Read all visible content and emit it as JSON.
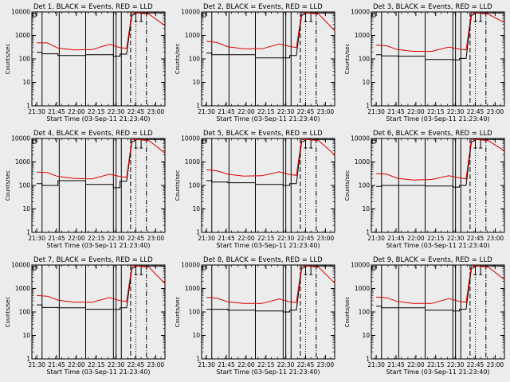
{
  "chart_data": {
    "type": "line",
    "layout": "3x3 grid",
    "xlabel": "Start Time (03-Sep-11 21:23:40)",
    "ylabel": "Counts/sec",
    "x_ticks": [
      "21:30",
      "21:45",
      "22:00",
      "22:15",
      "22:30",
      "22:45",
      "23:00"
    ],
    "y_ticks": [
      "1",
      "10",
      "100",
      "1000",
      "10000"
    ],
    "y_scale": "log",
    "ylim": [
      1,
      10000
    ],
    "x_unit": "minutes after 21:30",
    "xlim": [
      -3.7,
      97
    ],
    "series_legend": [
      {
        "name": "Events",
        "color": "#000000"
      },
      {
        "name": "LLD",
        "color": "#dd0000"
      }
    ],
    "markers": {
      "solid_lines": [
        4,
        17,
        37,
        58,
        60,
        64
      ],
      "dashed_line": 71,
      "dotted_line": 75,
      "dash_dot_line": 83
    },
    "panels": [
      {
        "title": "Det 1, BLACK = Events, RED = LLD",
        "events": {
          "x": [
            0,
            4,
            4.01,
            16,
            16.01,
            37,
            37.01,
            58,
            58.01,
            63,
            63.01,
            68,
            72,
            76,
            97
          ],
          "y": [
            190,
            190,
            165,
            165,
            140,
            140,
            150,
            150,
            130,
            130,
            160,
            160,
            7000,
            9000,
            9000
          ]
        },
        "lld": {
          "x": [
            0,
            8,
            16,
            28,
            42,
            55,
            63,
            68,
            72,
            76,
            85,
            97
          ],
          "y": [
            480,
            480,
            290,
            240,
            250,
            420,
            300,
            280,
            9000,
            9000,
            8000,
            2600
          ]
        }
      },
      {
        "title": "Det 2, BLACK = Events, RED = LLD",
        "events": {
          "x": [
            0,
            4,
            4.01,
            16,
            16.01,
            37,
            37.01,
            58,
            58.01,
            63,
            63.01,
            68,
            72,
            76,
            97
          ],
          "y": [
            175,
            175,
            150,
            150,
            150,
            150,
            110,
            110,
            110,
            110,
            140,
            140,
            7000,
            9000,
            9000
          ]
        },
        "lld": {
          "x": [
            0,
            8,
            16,
            28,
            42,
            55,
            63,
            68,
            72,
            76,
            85,
            97
          ],
          "y": [
            560,
            500,
            330,
            270,
            270,
            430,
            340,
            300,
            9000,
            9000,
            8000,
            1600
          ]
        }
      },
      {
        "title": "Det 3, BLACK = Events, RED = LLD",
        "events": {
          "x": [
            0,
            4,
            4.01,
            16,
            16.01,
            37,
            37.01,
            58,
            58.01,
            63,
            63.01,
            68,
            72,
            76,
            97
          ],
          "y": [
            150,
            150,
            135,
            135,
            130,
            130,
            95,
            95,
            90,
            90,
            105,
            105,
            7000,
            9000,
            9000
          ]
        },
        "lld": {
          "x": [
            0,
            8,
            16,
            28,
            42,
            55,
            63,
            68,
            72,
            76,
            85,
            97
          ],
          "y": [
            390,
            360,
            250,
            210,
            210,
            320,
            260,
            240,
            9000,
            9000,
            8000,
            3500
          ]
        }
      },
      {
        "title": "Det 4, BLACK = Events, RED = LLD",
        "events": {
          "x": [
            0,
            4,
            4.01,
            16,
            16.01,
            37,
            37.01,
            58,
            58.01,
            63,
            63.01,
            68,
            72,
            76,
            97
          ],
          "y": [
            120,
            120,
            100,
            100,
            160,
            160,
            110,
            110,
            80,
            80,
            150,
            150,
            7000,
            9000,
            9000
          ]
        },
        "lld": {
          "x": [
            0,
            8,
            16,
            28,
            42,
            55,
            63,
            68,
            72,
            76,
            85,
            97
          ],
          "y": [
            370,
            350,
            240,
            200,
            190,
            300,
            240,
            220,
            9000,
            9000,
            8000,
            2400
          ]
        }
      },
      {
        "title": "Det 5, BLACK = Events, RED = LLD",
        "events": {
          "x": [
            0,
            4,
            4.01,
            16,
            16.01,
            37,
            37.01,
            58,
            58.01,
            63,
            63.01,
            68,
            72,
            76,
            97
          ],
          "y": [
            160,
            160,
            140,
            140,
            130,
            130,
            110,
            110,
            100,
            100,
            120,
            120,
            7000,
            9000,
            9000
          ]
        },
        "lld": {
          "x": [
            0,
            8,
            16,
            28,
            42,
            55,
            63,
            68,
            72,
            76,
            85,
            97
          ],
          "y": [
            460,
            420,
            300,
            250,
            260,
            380,
            290,
            270,
            9000,
            9000,
            8000,
            2000
          ]
        }
      },
      {
        "title": "Det 6, BLACK = Events, RED = LLD",
        "events": {
          "x": [
            0,
            4,
            4.01,
            16,
            16.01,
            37,
            37.01,
            58,
            58.01,
            63,
            63.01,
            68,
            72,
            76,
            97
          ],
          "y": [
            90,
            90,
            100,
            100,
            100,
            100,
            95,
            95,
            85,
            85,
            100,
            100,
            7000,
            9000,
            9000
          ]
        },
        "lld": {
          "x": [
            0,
            8,
            16,
            28,
            42,
            55,
            63,
            68,
            72,
            76,
            85,
            97
          ],
          "y": [
            320,
            300,
            200,
            170,
            180,
            260,
            210,
            190,
            9000,
            9000,
            8000,
            3000
          ]
        }
      },
      {
        "title": "Det 7, BLACK = Events, RED = LLD",
        "events": {
          "x": [
            0,
            4,
            4.01,
            16,
            16.01,
            37,
            37.01,
            58,
            58.01,
            63,
            63.01,
            68,
            72,
            76,
            97
          ],
          "y": [
            200,
            200,
            155,
            155,
            150,
            150,
            130,
            130,
            130,
            130,
            150,
            150,
            7000,
            9000,
            9000
          ]
        },
        "lld": {
          "x": [
            0,
            8,
            16,
            28,
            42,
            55,
            63,
            68,
            72,
            76,
            85,
            97
          ],
          "y": [
            500,
            470,
            320,
            260,
            260,
            410,
            300,
            280,
            9000,
            9000,
            8000,
            1600
          ]
        }
      },
      {
        "title": "Det 8, BLACK = Events, RED = LLD",
        "events": {
          "x": [
            0,
            4,
            4.01,
            16,
            16.01,
            37,
            37.01,
            58,
            58.01,
            63,
            63.01,
            68,
            72,
            76,
            97
          ],
          "y": [
            130,
            130,
            130,
            130,
            120,
            120,
            110,
            110,
            100,
            100,
            120,
            120,
            7000,
            9000,
            9000
          ]
        },
        "lld": {
          "x": [
            0,
            8,
            16,
            28,
            42,
            55,
            63,
            68,
            72,
            76,
            85,
            97
          ],
          "y": [
            420,
            390,
            270,
            230,
            230,
            360,
            270,
            250,
            9000,
            9000,
            8000,
            1700
          ]
        }
      },
      {
        "title": "Det 9, BLACK = Events, RED = LLD",
        "events": {
          "x": [
            0,
            4,
            4.01,
            16,
            16.01,
            37,
            37.01,
            58,
            58.01,
            63,
            63.01,
            68,
            72,
            76,
            97
          ],
          "y": [
            175,
            175,
            150,
            150,
            150,
            150,
            120,
            120,
            110,
            110,
            130,
            130,
            7000,
            9000,
            9000
          ]
        },
        "lld": {
          "x": [
            0,
            8,
            16,
            28,
            42,
            55,
            63,
            68,
            72,
            76,
            85,
            97
          ],
          "y": [
            430,
            400,
            280,
            230,
            230,
            370,
            280,
            260,
            9000,
            9000,
            8000,
            2400
          ]
        }
      }
    ]
  }
}
